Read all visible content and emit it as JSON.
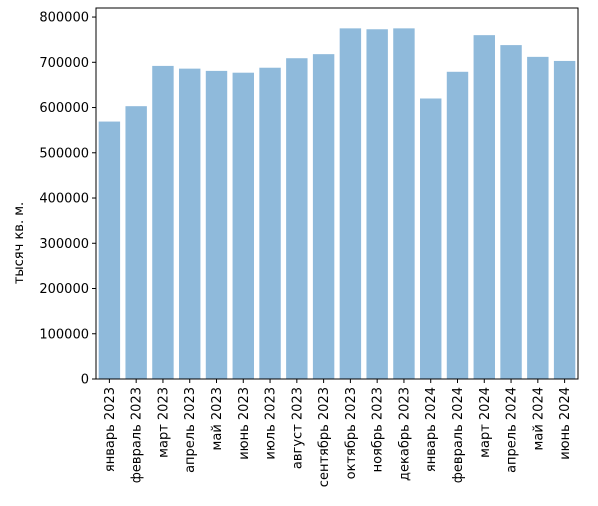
{
  "chart_data": {
    "type": "bar",
    "title": "",
    "xlabel": "",
    "ylabel": "тысяч кв. м.",
    "ylim": [
      0,
      820000
    ],
    "yticks": [
      0,
      100000,
      200000,
      300000,
      400000,
      500000,
      600000,
      700000,
      800000
    ],
    "grid": false,
    "bar_color": "#8fbadb",
    "categories": [
      "январь 2023",
      "февраль 2023",
      "март 2023",
      "апрель 2023",
      "май 2023",
      "июнь 2023",
      "июль 2023",
      "август 2023",
      "сентябрь 2023",
      "октябрь 2023",
      "ноябрь 2023",
      "декабрь 2023",
      "январь 2024",
      "февраль 2024",
      "март 2024",
      "апрель 2024",
      "май 2024",
      "июнь 2024"
    ],
    "values": [
      569000,
      603000,
      692000,
      686000,
      681000,
      677000,
      688000,
      709000,
      718000,
      775000,
      773000,
      775000,
      620000,
      679000,
      760000,
      738000,
      712000,
      703000
    ]
  }
}
